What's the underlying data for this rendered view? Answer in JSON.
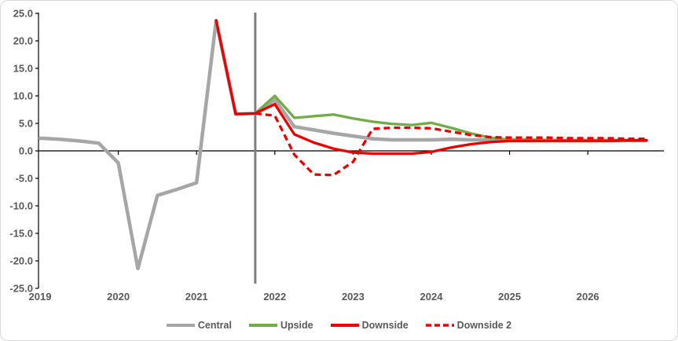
{
  "chart_data": {
    "type": "line",
    "title": "",
    "xlabel": "",
    "ylabel": "",
    "x_unit": "quarterly",
    "x_start_year": 2019,
    "x_step_years": 0.25,
    "x_tick_labels": [
      "2019",
      "2020",
      "2021",
      "2022",
      "2023",
      "2024",
      "2025",
      "2026"
    ],
    "y_axis": {
      "tick_values": [
        25,
        20,
        15,
        10,
        5,
        0,
        -5,
        -10,
        -15,
        -20,
        -25
      ],
      "tick_labels": [
        "25.0",
        "20.0",
        "15.0",
        "10.0",
        "5.0",
        "0.0",
        "-5.0",
        "-10.0",
        "-15.0",
        "-20.0",
        "-25.0"
      ]
    },
    "ylim": [
      -25,
      25
    ],
    "grid": false,
    "legend_position": "bottom",
    "forecast_divider_x": 2021.75,
    "colors": {
      "central": "#a6a6a6",
      "upside": "#70ad47",
      "downside": "#ee0000",
      "divider": "#7f7f7f",
      "axis": "#000000",
      "axis_text": "#595959",
      "frame_border": "#d9d9d9"
    },
    "series": [
      {
        "name": "Central",
        "style": "solid",
        "color": "#a6a6a6",
        "start_index": 0,
        "values": [
          2.3,
          2.1,
          1.8,
          1.4,
          -2.2,
          -21.4,
          -8.1,
          -7.0,
          -5.8,
          23.7,
          6.7,
          6.8,
          9.3,
          4.4,
          3.8,
          3.2,
          2.7,
          2.2,
          2.0,
          2.0,
          2.0,
          2.1,
          2.0,
          2.0,
          2.0,
          2.0,
          1.9,
          1.9,
          1.9,
          1.9,
          1.9,
          1.9
        ]
      },
      {
        "name": "Upside",
        "style": "solid",
        "color": "#70ad47",
        "start_index": 11,
        "values": [
          6.8,
          10.0,
          6.0,
          6.3,
          6.6,
          5.9,
          5.3,
          4.9,
          4.7,
          5.1,
          4.2,
          3.2,
          2.4,
          2.0,
          2.0,
          1.9,
          1.9,
          1.9,
          1.9,
          1.9,
          1.9
        ]
      },
      {
        "name": "Downside",
        "style": "solid",
        "color": "#ee0000",
        "start_index": 9,
        "values": [
          23.7,
          6.7,
          6.8,
          8.5,
          3.0,
          1.5,
          0.4,
          -0.3,
          -0.5,
          -0.5,
          -0.5,
          -0.2,
          0.6,
          1.2,
          1.6,
          1.8,
          1.8,
          1.8,
          1.8,
          1.8,
          1.8,
          1.9,
          1.9
        ]
      },
      {
        "name": "Downside 2",
        "style": "dashed",
        "color": "#ee0000",
        "start_index": 11,
        "values": [
          6.8,
          6.4,
          -0.7,
          -4.3,
          -4.4,
          -2.0,
          4.0,
          4.2,
          4.2,
          4.1,
          3.5,
          2.9,
          2.5,
          2.4,
          2.4,
          2.4,
          2.3,
          2.3,
          2.3,
          2.2,
          2.2
        ]
      }
    ]
  }
}
